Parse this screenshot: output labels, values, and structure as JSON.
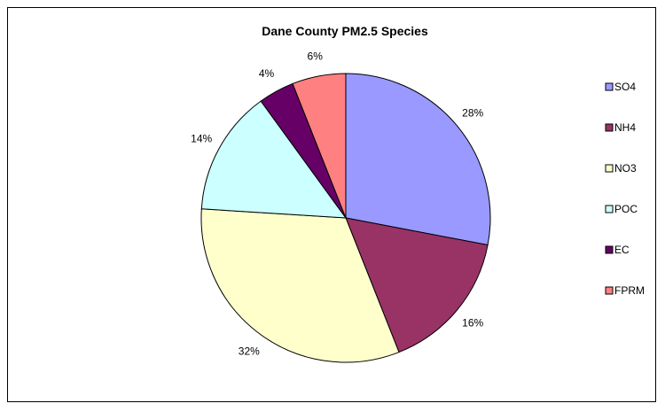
{
  "chart_data": {
    "type": "pie",
    "title": "Dane County PM2.5 Species",
    "categories": [
      "SO4",
      "NH4",
      "NO3",
      "POC",
      "EC",
      "FPRM"
    ],
    "values": [
      28,
      16,
      32,
      14,
      4,
      6
    ],
    "labels": [
      "28%",
      "16%",
      "32%",
      "14%",
      "4%",
      "6%"
    ],
    "colors": [
      "#9999FF",
      "#993366",
      "#FFFFCC",
      "#CCFFFF",
      "#660066",
      "#FF8080"
    ],
    "legend_position": "right",
    "start_angle_deg": 0,
    "direction": "clockwise"
  }
}
